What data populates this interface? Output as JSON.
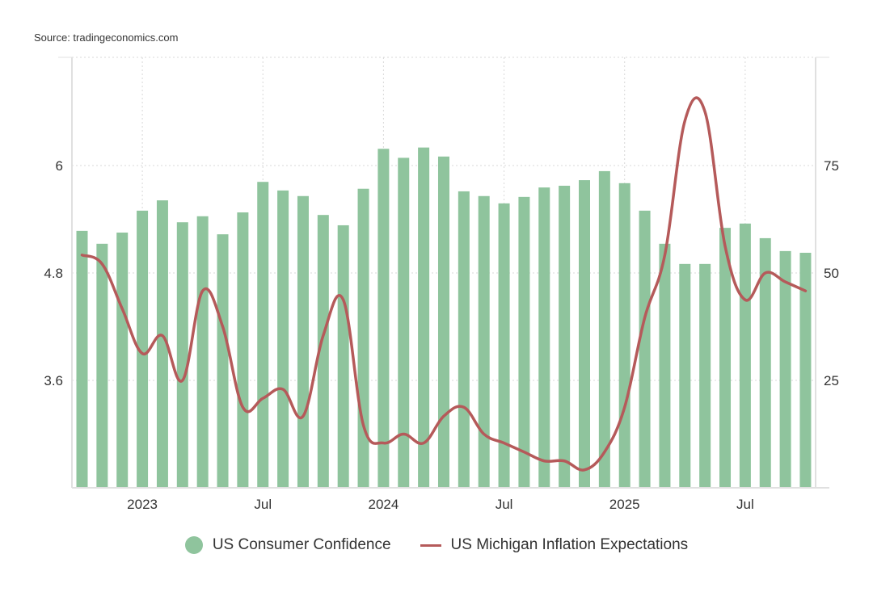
{
  "source": "Source: tradingeconomics.com",
  "colors": {
    "bars": "#8fc49d",
    "line": "#b55a5a",
    "grid": "#d8d8d8",
    "axis": "#e0e0e0",
    "text": "#333333"
  },
  "chart_data": {
    "type": "bar+line",
    "title": "",
    "periods": [
      "Oct 2022",
      "Nov 2022",
      "Dec 2022",
      "Jan 2023",
      "Feb 2023",
      "Mar 2023",
      "Apr 2023",
      "May 2023",
      "Jun 2023",
      "Jul 2023",
      "Aug 2023",
      "Sep 2023",
      "Oct 2023",
      "Nov 2023",
      "Dec 2023",
      "Jan 2024",
      "Feb 2024",
      "Mar 2024",
      "Apr 2024",
      "May 2024",
      "Jun 2024",
      "Jul 2024",
      "Aug 2024",
      "Sep 2024",
      "Oct 2024",
      "Nov 2024",
      "Dec 2024",
      "Jan 2025",
      "Feb 2025",
      "Mar 2025",
      "Apr 2025",
      "May 2025",
      "Jun 2025",
      "Jul 2025",
      "Aug 2025",
      "Sep 2025",
      "Oct 2025"
    ],
    "x_tick_labels": [
      {
        "label": "2023",
        "index": 3
      },
      {
        "label": "Jul",
        "index": 9
      },
      {
        "label": "2024",
        "index": 15
      },
      {
        "label": "Jul",
        "index": 21
      },
      {
        "label": "2025",
        "index": 27
      },
      {
        "label": "Jul",
        "index": 33
      }
    ],
    "series": [
      {
        "name": "US Consumer Confidence",
        "type": "bar",
        "axis": "right",
        "values": [
          59.8,
          56.8,
          59.4,
          64.5,
          66.9,
          61.8,
          63.2,
          59.0,
          64.1,
          71.2,
          69.2,
          67.9,
          63.5,
          61.1,
          69.6,
          78.9,
          76.8,
          79.2,
          77.1,
          69.0,
          67.9,
          66.2,
          67.7,
          69.9,
          70.3,
          71.6,
          73.7,
          70.9,
          64.5,
          56.8,
          52.1,
          52.1,
          60.5,
          61.5,
          58.1,
          55.1,
          54.7
        ]
      },
      {
        "name": "US Michigan Inflation Expectations",
        "type": "line",
        "axis": "left",
        "values": [
          5.0,
          4.9,
          4.4,
          3.9,
          4.1,
          3.6,
          4.6,
          4.2,
          3.3,
          3.4,
          3.5,
          3.2,
          4.1,
          4.5,
          3.1,
          2.9,
          3.0,
          2.9,
          3.2,
          3.3,
          3.0,
          2.9,
          2.8,
          2.7,
          2.7,
          2.6,
          2.8,
          3.3,
          4.3,
          5.0,
          6.5,
          6.6,
          5.1,
          4.5,
          4.8,
          4.7,
          4.6
        ]
      }
    ],
    "left_axis": {
      "ticks": [
        3.6,
        4.8,
        6
      ],
      "tick_labels": [
        "3.6",
        "4.8",
        "6"
      ],
      "range": [
        2.4,
        7.2
      ]
    },
    "right_axis": {
      "ticks": [
        25,
        50,
        75
      ],
      "tick_labels": [
        "25",
        "50",
        "75"
      ],
      "range": [
        0,
        100
      ]
    },
    "grid": true,
    "legend_position": "bottom-center",
    "legend": [
      {
        "label": "US Consumer Confidence",
        "marker": "circle"
      },
      {
        "label": "US Michigan Inflation Expectations",
        "marker": "line"
      }
    ]
  }
}
